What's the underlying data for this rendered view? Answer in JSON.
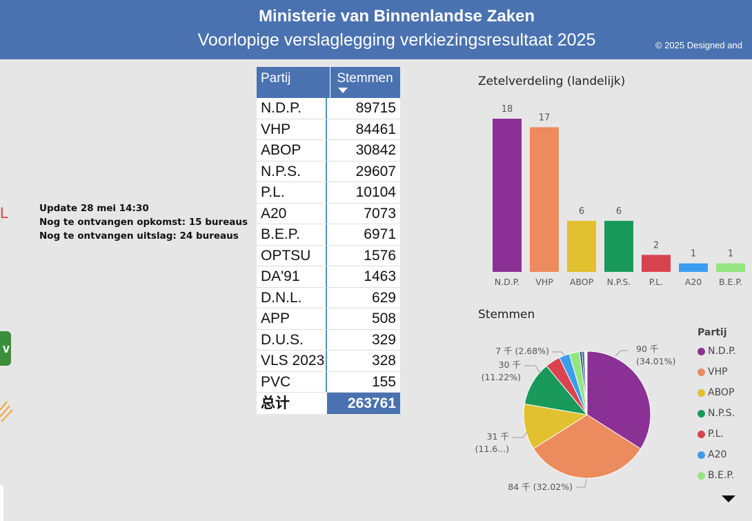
{
  "header": {
    "title": "Ministerie van Binnenlandse Zaken",
    "subtitle": "Voorlopige verslaglegging verkiezingsresultaat 2025",
    "copyright": "© 2025 Designed and"
  },
  "left_edge": {
    "letter": "L",
    "button_glyph": "v"
  },
  "update": {
    "line1": "Update 28 mei 14:30",
    "line2": "Nog te ontvangen opkomst: 15 bureaus",
    "line3": "Nog te ontvangen uitslag: 24 bureaus"
  },
  "table": {
    "col1": "Partij",
    "col2": "Stemmen",
    "rows": [
      {
        "party": "N.D.P.",
        "votes": "89715"
      },
      {
        "party": "VHP",
        "votes": "84461"
      },
      {
        "party": "ABOP",
        "votes": "30842"
      },
      {
        "party": "N.P.S.",
        "votes": "29607"
      },
      {
        "party": "P.L.",
        "votes": "10104"
      },
      {
        "party": "A20",
        "votes": "7073"
      },
      {
        "party": "B.E.P.",
        "votes": "6971"
      },
      {
        "party": "OPTSU",
        "votes": "1576"
      },
      {
        "party": "DA'91",
        "votes": "1463"
      },
      {
        "party": "D.N.L.",
        "votes": "629"
      },
      {
        "party": "APP",
        "votes": "508"
      },
      {
        "party": "D.U.S.",
        "votes": "329"
      },
      {
        "party": "VLS 2023",
        "votes": "328"
      },
      {
        "party": "PVC",
        "votes": "155"
      }
    ],
    "total_label": "总计",
    "total_value": "263761"
  },
  "colors": {
    "N.D.P.": "#8b3195",
    "VHP": "#ec8b5e",
    "ABOP": "#e2c130",
    "N.P.S.": "#199a5b",
    "P.L.": "#d9434f",
    "A20": "#3b9df0",
    "B.E.P.": "#93e580",
    "other": "#2a4a8c"
  },
  "chart_data": [
    {
      "type": "bar",
      "title": "Zetelverdeling (landelijk)",
      "categories": [
        "N.D.P.",
        "VHP",
        "ABOP",
        "N.P.S.",
        "P.L.",
        "A20",
        "B.E.P."
      ],
      "values": [
        18,
        17,
        6,
        6,
        2,
        1,
        1
      ],
      "ylim": [
        0,
        18
      ],
      "grid": false
    },
    {
      "type": "pie",
      "title": "Stemmen",
      "legend_title": "Partij",
      "legend_position": "right",
      "categories": [
        "N.D.P.",
        "VHP",
        "ABOP",
        "N.P.S.",
        "P.L.",
        "A20",
        "B.E.P."
      ],
      "values": [
        89715,
        84461,
        30842,
        29607,
        10104,
        7073,
        6971
      ],
      "other_values": [
        1576,
        1463,
        629,
        508,
        329,
        328,
        155
      ],
      "labels": {
        "N.D.P.": [
          "90 千",
          "(34.01%)"
        ],
        "VHP": [
          "84 千 (32.02%)"
        ],
        "ABOP": [
          "31 千",
          "(11.6...)"
        ],
        "N.P.S.": [
          "30 千",
          "(11.22%)"
        ],
        "A20": [
          "7 千 (2.68%)"
        ]
      }
    }
  ]
}
